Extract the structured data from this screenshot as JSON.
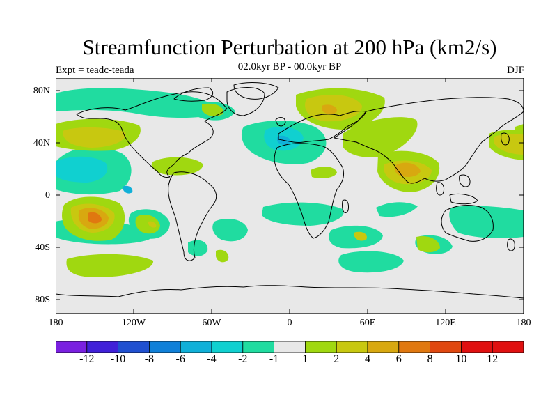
{
  "title": "Streamfunction Perturbation at 200 hPa (km2/s)",
  "experiment": "Expt = teadc-teada",
  "period": "02.0kyr BP - 00.0kyr BP",
  "season": "DJF",
  "y_axis": {
    "ticks": [
      "80N",
      "40N",
      "0",
      "40S",
      "80S"
    ]
  },
  "x_axis": {
    "ticks": [
      "180",
      "120W",
      "60W",
      "0",
      "60E",
      "120E",
      "180"
    ]
  },
  "colorbar": {
    "labels": [
      "-12",
      "-10",
      "-8",
      "-6",
      "-4",
      "-2",
      "-1",
      "1",
      "2",
      "4",
      "6",
      "8",
      "10",
      "12"
    ],
    "colors": [
      "#7a20e0",
      "#4020d8",
      "#2050d0",
      "#1080d8",
      "#10b0d8",
      "#10d0d0",
      "#20dca0",
      "#e8e8e8",
      "#a0d810",
      "#c8c810",
      "#d8a810",
      "#e07810",
      "#e04810",
      "#e01010"
    ]
  },
  "colors": {
    "ocean": "#e8e8e8",
    "coast": "#000000"
  }
}
